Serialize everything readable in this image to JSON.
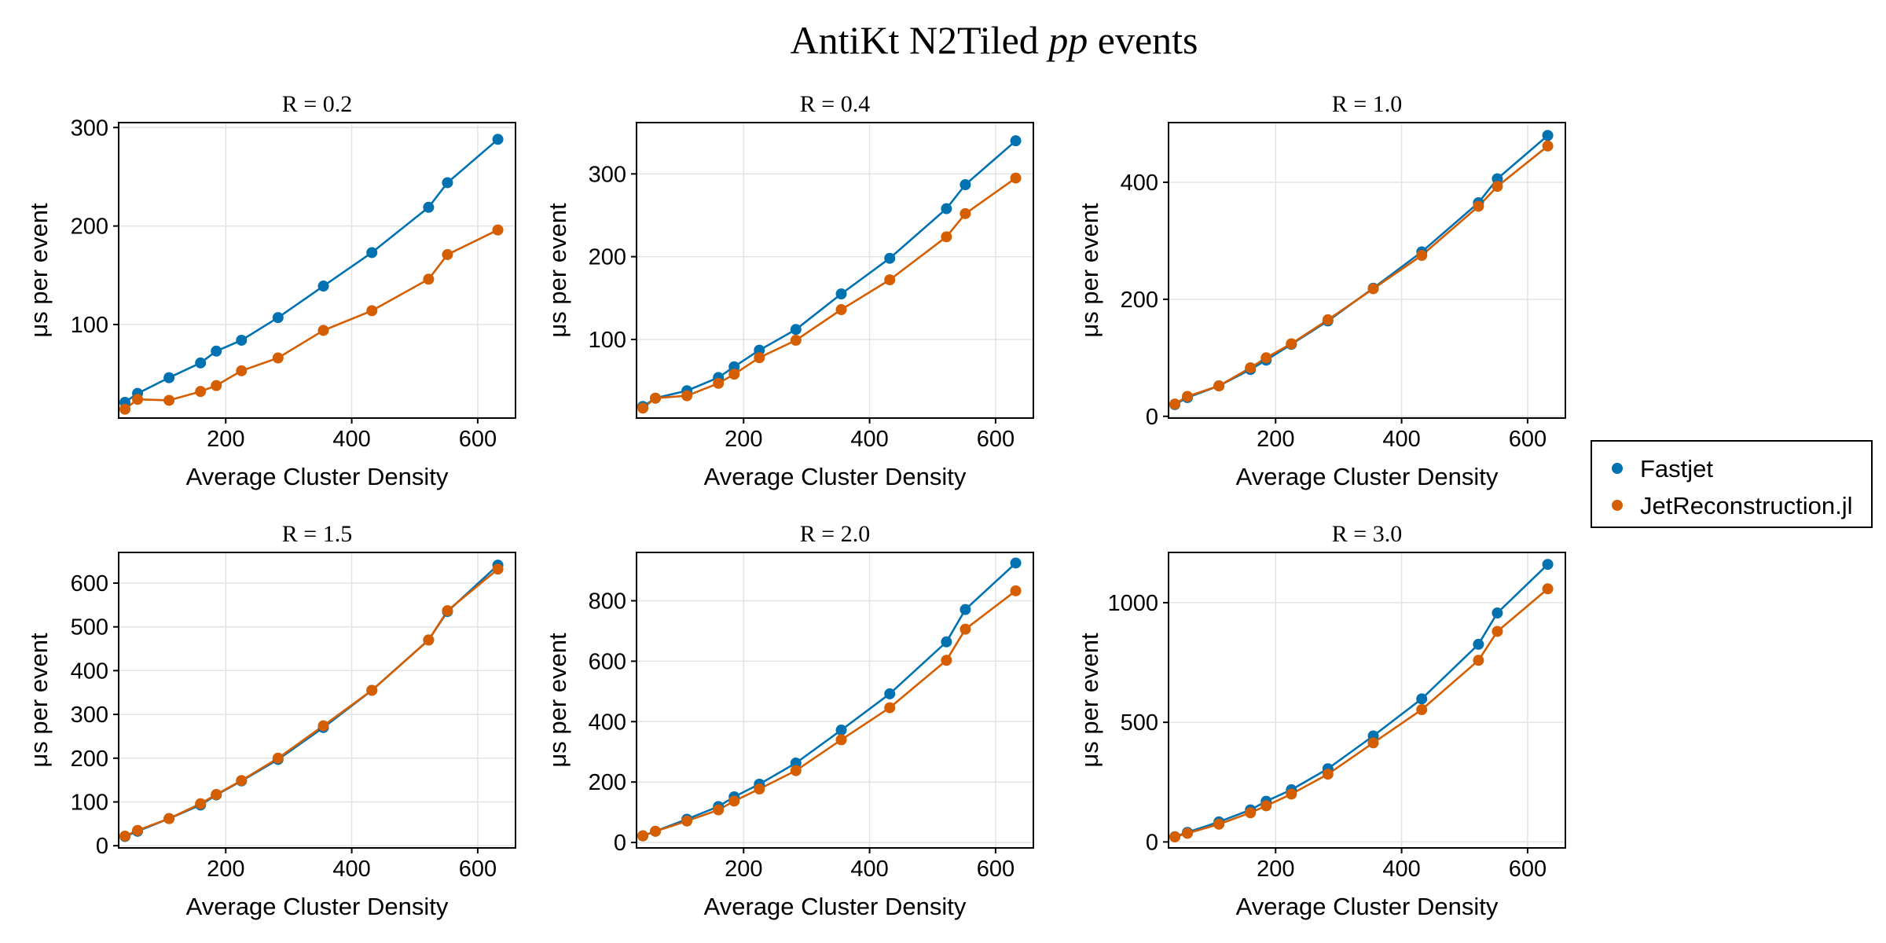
{
  "title": {
    "prefix": "AntiKt N2Tiled ",
    "italic": "pp",
    "suffix": " events"
  },
  "colors": {
    "Fastjet": "#0072b2",
    "JetReconstruction.jl": "#d55e00",
    "grid": "#e3e3e3",
    "frame": "#000000"
  },
  "legend": {
    "entries": [
      "Fastjet",
      "JetReconstruction.jl"
    ]
  },
  "chart_data": [
    {
      "type": "line",
      "title": "R = 0.2",
      "xlabel": "Average Cluster Density",
      "ylabel": "μs per event",
      "xlim": [
        30,
        660
      ],
      "ylim": [
        5,
        305
      ],
      "xticks": [
        200,
        400,
        600
      ],
      "yticks": [
        100,
        200,
        300
      ],
      "grid": true,
      "x": [
        40,
        60,
        110,
        160,
        185,
        225,
        283,
        355,
        432,
        522,
        552,
        632
      ],
      "series": [
        {
          "name": "Fastjet",
          "values": [
            21,
            30,
            46,
            61,
            73,
            84,
            107,
            139,
            173,
            219,
            244,
            288
          ]
        },
        {
          "name": "JetReconstruction.jl",
          "values": [
            14,
            24,
            23,
            32,
            38,
            53,
            66,
            94,
            114,
            146,
            171,
            196
          ]
        }
      ]
    },
    {
      "type": "line",
      "title": "R = 0.4",
      "xlabel": "Average Cluster Density",
      "ylabel": "μs per event",
      "xlim": [
        30,
        660
      ],
      "ylim": [
        5,
        362
      ],
      "xticks": [
        200,
        400,
        600
      ],
      "yticks": [
        100,
        200,
        300
      ],
      "grid": true,
      "x": [
        40,
        60,
        110,
        160,
        185,
        225,
        283,
        355,
        432,
        522,
        552,
        632
      ],
      "series": [
        {
          "name": "Fastjet",
          "values": [
            19,
            29,
            38,
            54,
            67,
            87,
            112,
            155,
            198,
            258,
            287,
            340
          ]
        },
        {
          "name": "JetReconstruction.jl",
          "values": [
            17,
            29,
            32,
            47,
            58,
            78,
            99,
            136,
            172,
            224,
            252,
            295
          ]
        }
      ]
    },
    {
      "type": "line",
      "title": "R = 1.0",
      "xlabel": "Average Cluster Density",
      "ylabel": "μs per event",
      "xlim": [
        30,
        660
      ],
      "ylim": [
        -3,
        502
      ],
      "xticks": [
        200,
        400,
        600
      ],
      "yticks": [
        0,
        200,
        400
      ],
      "grid": true,
      "x": [
        40,
        60,
        110,
        160,
        185,
        225,
        283,
        355,
        432,
        522,
        552,
        632
      ],
      "series": [
        {
          "name": "Fastjet",
          "values": [
            20,
            32,
            52,
            80,
            96,
            123,
            163,
            219,
            281,
            365,
            406,
            480
          ]
        },
        {
          "name": "JetReconstruction.jl",
          "values": [
            21,
            34,
            52,
            83,
            100,
            124,
            165,
            218,
            275,
            359,
            393,
            462
          ]
        }
      ]
    },
    {
      "type": "line",
      "title": "R = 1.5",
      "xlabel": "Average Cluster Density",
      "ylabel": "μs per event",
      "xlim": [
        30,
        660
      ],
      "ylim": [
        -5,
        670
      ],
      "xticks": [
        200,
        400,
        600
      ],
      "yticks": [
        0,
        100,
        200,
        300,
        400,
        500,
        600
      ],
      "grid": true,
      "x": [
        40,
        60,
        110,
        160,
        185,
        225,
        283,
        355,
        432,
        522,
        552,
        632
      ],
      "series": [
        {
          "name": "Fastjet",
          "values": [
            21,
            33,
            62,
            93,
            116,
            148,
            197,
            270,
            355,
            470,
            535,
            641
          ]
        },
        {
          "name": "JetReconstruction.jl",
          "values": [
            22,
            35,
            62,
            96,
            117,
            149,
            200,
            274,
            355,
            470,
            537,
            632
          ]
        }
      ]
    },
    {
      "type": "line",
      "title": "R = 2.0",
      "xlabel": "Average Cluster Density",
      "ylabel": "μs per event",
      "xlim": [
        30,
        660
      ],
      "ylim": [
        -18,
        960
      ],
      "xticks": [
        200,
        400,
        600
      ],
      "yticks": [
        0,
        200,
        400,
        600,
        800
      ],
      "grid": true,
      "x": [
        40,
        60,
        110,
        160,
        185,
        225,
        283,
        355,
        432,
        522,
        552,
        632
      ],
      "series": [
        {
          "name": "Fastjet",
          "values": [
            22,
            37,
            77,
            119,
            151,
            193,
            263,
            372,
            492,
            664,
            771,
            925
          ]
        },
        {
          "name": "JetReconstruction.jl",
          "values": [
            22,
            37,
            71,
            108,
            137,
            177,
            238,
            340,
            446,
            603,
            706,
            833
          ]
        }
      ]
    },
    {
      "type": "line",
      "title": "R = 3.0",
      "xlabel": "Average Cluster Density",
      "ylabel": "μs per event",
      "xlim": [
        30,
        660
      ],
      "ylim": [
        -25,
        1210
      ],
      "xticks": [
        200,
        400,
        600
      ],
      "yticks": [
        0,
        500,
        1000
      ],
      "grid": true,
      "x": [
        40,
        60,
        110,
        160,
        185,
        225,
        283,
        355,
        432,
        522,
        552,
        632
      ],
      "series": [
        {
          "name": "Fastjet",
          "values": [
            22,
            40,
            84,
            134,
            170,
            218,
            306,
            443,
            598,
            826,
            957,
            1160
          ]
        },
        {
          "name": "JetReconstruction.jl",
          "values": [
            21,
            36,
            74,
            122,
            151,
            200,
            283,
            414,
            553,
            759,
            880,
            1058
          ]
        }
      ]
    }
  ]
}
